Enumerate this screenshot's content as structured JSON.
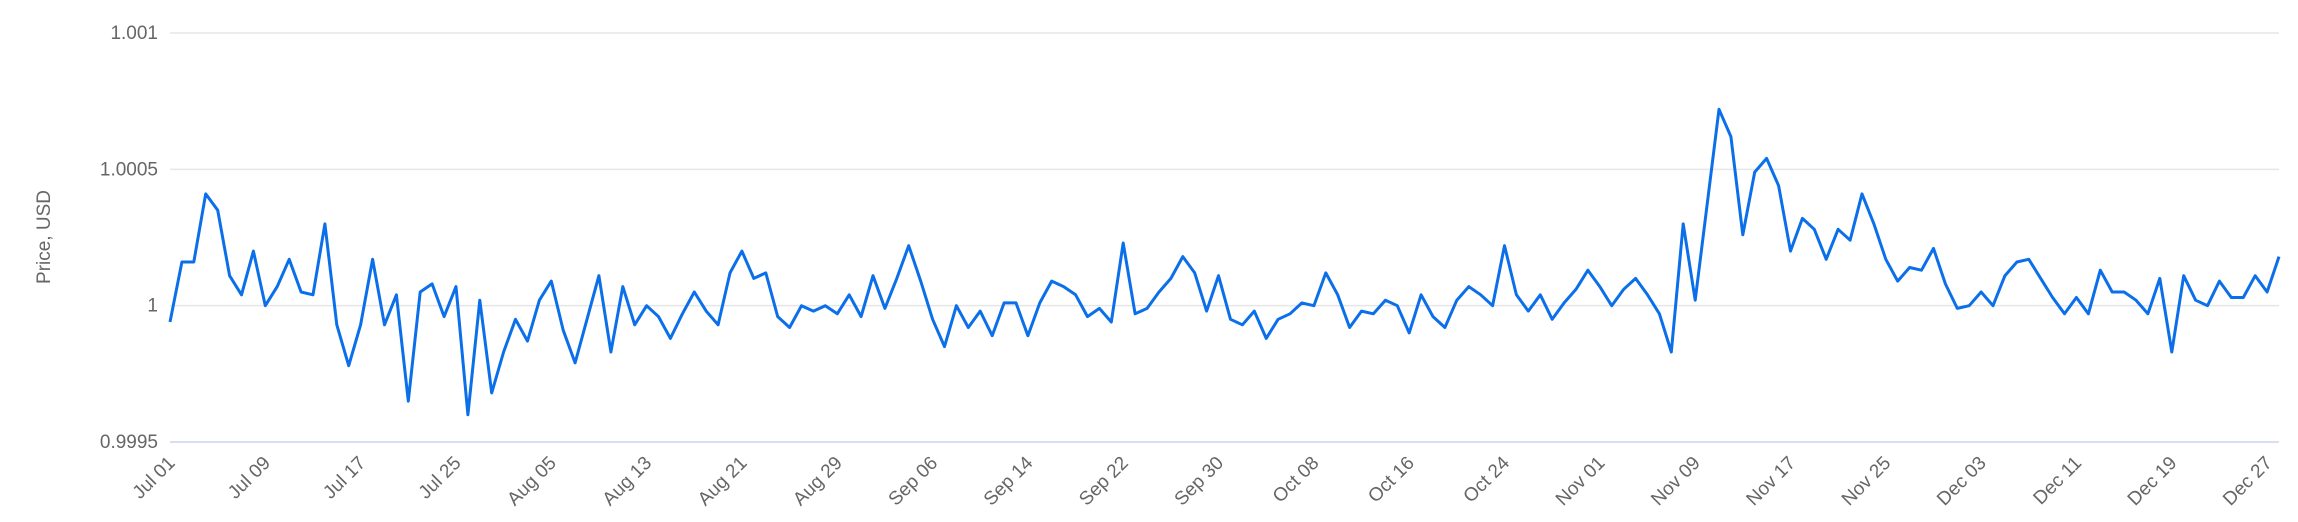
{
  "chart_data": {
    "type": "line",
    "y_label": "Price, USD",
    "color": "#0b6fea",
    "grid": true,
    "ylim": [
      0.9995,
      1.001
    ],
    "yticks": [
      0.9995,
      1,
      1.0005,
      1.001
    ],
    "categories": [
      "Jul 01",
      null,
      null,
      null,
      null,
      null,
      null,
      null,
      "Jul 09",
      null,
      null,
      null,
      null,
      null,
      null,
      null,
      "Jul 17",
      null,
      null,
      null,
      null,
      null,
      null,
      null,
      "Jul 25",
      null,
      null,
      null,
      null,
      null,
      null,
      null,
      "Aug 05",
      null,
      null,
      null,
      null,
      null,
      null,
      null,
      "Aug 13",
      null,
      null,
      null,
      null,
      null,
      null,
      null,
      "Aug 21",
      null,
      null,
      null,
      null,
      null,
      null,
      null,
      "Aug 29",
      null,
      null,
      null,
      null,
      null,
      null,
      null,
      "Sep 06",
      null,
      null,
      null,
      null,
      null,
      null,
      null,
      "Sep 14",
      null,
      null,
      null,
      null,
      null,
      null,
      null,
      "Sep 22",
      null,
      null,
      null,
      null,
      null,
      null,
      null,
      "Sep 30",
      null,
      null,
      null,
      null,
      null,
      null,
      null,
      "Oct 08",
      null,
      null,
      null,
      null,
      null,
      null,
      null,
      "Oct 16",
      null,
      null,
      null,
      null,
      null,
      null,
      null,
      "Oct 24",
      null,
      null,
      null,
      null,
      null,
      null,
      null,
      "Nov 01",
      null,
      null,
      null,
      null,
      null,
      null,
      null,
      "Nov 09",
      null,
      null,
      null,
      null,
      null,
      null,
      null,
      "Nov 17",
      null,
      null,
      null,
      null,
      null,
      null,
      null,
      "Nov 25",
      null,
      null,
      null,
      null,
      null,
      null,
      null,
      "Dec 03",
      null,
      null,
      null,
      null,
      null,
      null,
      null,
      "Dec 11",
      null,
      null,
      null,
      null,
      null,
      null,
      null,
      "Dec 19",
      null,
      null,
      null,
      null,
      null,
      null,
      null,
      "Dec 27",
      null
    ],
    "values": [
      0.99994,
      1.00016,
      1.00016,
      1.00041,
      1.00035,
      1.00011,
      1.00004,
      1.0002,
      1.0,
      1.00007,
      1.00017,
      1.00005,
      1.00004,
      1.0003,
      0.99993,
      0.99978,
      0.99993,
      1.00017,
      0.99993,
      1.00004,
      0.99965,
      1.00005,
      1.00008,
      0.99996,
      1.00007,
      0.9996,
      1.00002,
      0.99968,
      0.99983,
      0.99995,
      0.99987,
      1.00002,
      1.00009,
      0.99991,
      0.99979,
      0.99995,
      1.00011,
      0.99983,
      1.00007,
      0.99993,
      1.0,
      0.99996,
      0.99988,
      0.99997,
      1.00005,
      0.99998,
      0.99993,
      1.00012,
      1.0002,
      1.0001,
      1.00012,
      0.99996,
      0.99992,
      1.0,
      0.99998,
      1.0,
      0.99997,
      1.00004,
      0.99996,
      1.00011,
      0.99999,
      1.0001,
      1.00022,
      1.00009,
      0.99995,
      0.99985,
      1.0,
      0.99992,
      0.99998,
      0.99989,
      1.00001,
      1.00001,
      0.99989,
      1.00001,
      1.00009,
      1.00007,
      1.00004,
      0.99996,
      0.99999,
      0.99994,
      1.00023,
      0.99997,
      0.99999,
      1.00005,
      1.0001,
      1.00018,
      1.00012,
      0.99998,
      1.00011,
      0.99995,
      0.99993,
      0.99998,
      0.99988,
      0.99995,
      0.99997,
      1.00001,
      1.0,
      1.00012,
      1.00004,
      0.99992,
      0.99998,
      0.99997,
      1.00002,
      1.0,
      0.9999,
      1.00004,
      0.99996,
      0.99992,
      1.00002,
      1.00007,
      1.00004,
      1.0,
      1.00022,
      1.00004,
      0.99998,
      1.00004,
      0.99995,
      1.00001,
      1.00006,
      1.00013,
      1.00007,
      1.0,
      1.00006,
      1.0001,
      1.00004,
      0.99997,
      0.99983,
      1.0003,
      1.00002,
      1.00037,
      1.00072,
      1.00062,
      1.00026,
      1.00049,
      1.00054,
      1.00044,
      1.0002,
      1.00032,
      1.00028,
      1.00017,
      1.00028,
      1.00024,
      1.00041,
      1.0003,
      1.00017,
      1.00009,
      1.00014,
      1.00013,
      1.00021,
      1.00008,
      0.99999,
      1.0,
      1.00005,
      1.0,
      1.00011,
      1.00016,
      1.00017,
      1.0001,
      1.00003,
      0.99997,
      1.00003,
      0.99997,
      1.00013,
      1.00005,
      1.00005,
      1.00002,
      0.99997,
      1.0001,
      0.99983,
      1.00011,
      1.00002,
      1.0,
      1.00009,
      1.00003,
      1.00003,
      1.00011,
      1.00005,
      1.00018
    ]
  }
}
